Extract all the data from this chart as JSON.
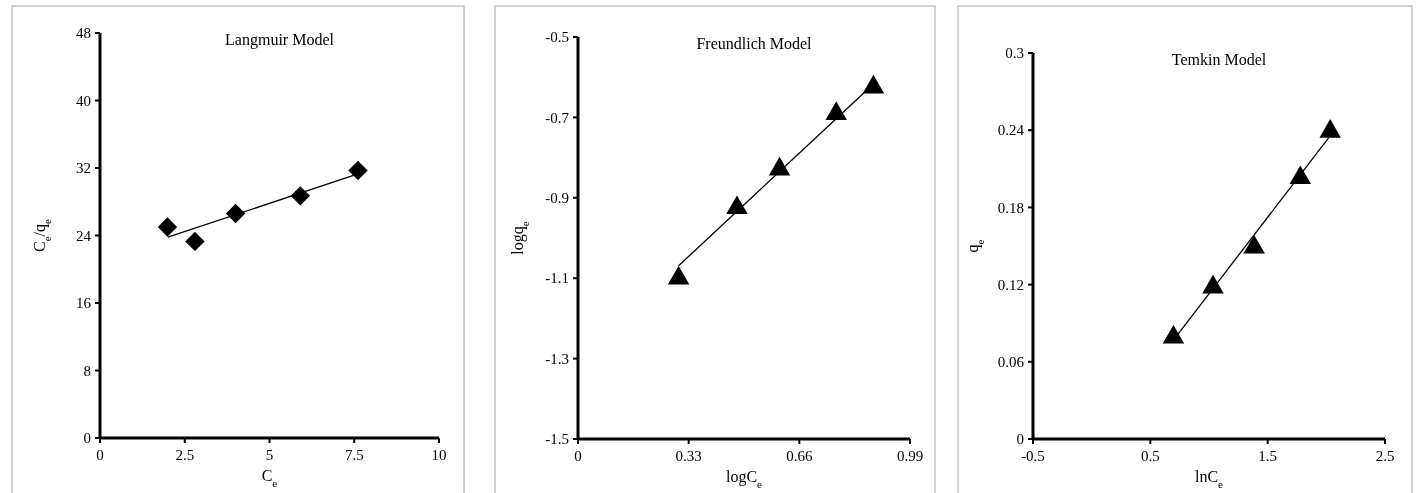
{
  "chart_data": [
    {
      "type": "scatter",
      "title": "Langmuir Model",
      "xlabel": "C$_{e}$",
      "ylabel": "C$_{e}$/q$_{e}$",
      "xlim": [
        0,
        10
      ],
      "xticks": [
        0,
        2.5,
        5,
        7.5,
        10
      ],
      "ylim": [
        0,
        48
      ],
      "yticks": [
        0,
        8,
        16,
        24,
        32,
        40,
        48
      ],
      "grid": false,
      "series": [
        {
          "type": "scatter",
          "marker": "diamond",
          "color": "#000000",
          "x": [
            1.99,
            2.8,
            4.0,
            5.91,
            7.61
          ],
          "values": [
            25.0,
            23.3,
            26.6,
            28.7,
            31.7
          ]
        },
        {
          "type": "line",
          "marker": "none",
          "line_style": "solid",
          "color": "#000000",
          "x": [
            2.0,
            7.61
          ],
          "values": [
            23.8,
            31.3
          ]
        }
      ]
    },
    {
      "type": "scatter",
      "title": "Freundlich Model",
      "xlabel": "logC$_{e}$",
      "ylabel": "logq$_{e}$",
      "xlim": [
        0,
        0.99
      ],
      "xticks": [
        0,
        0.33,
        0.66,
        0.99
      ],
      "ylim": [
        -1.5,
        -0.5
      ],
      "yticks": [
        -1.5,
        -1.3,
        -1.1,
        -0.9,
        -0.7,
        -0.5
      ],
      "grid": false,
      "series": [
        {
          "type": "scatter",
          "marker": "triangle",
          "color": "#000000",
          "x": [
            0.3,
            0.474,
            0.601,
            0.77,
            0.881
          ],
          "values": [
            -1.1,
            -0.925,
            -0.829,
            -0.691,
            -0.625
          ]
        },
        {
          "type": "line",
          "marker": "none",
          "line_style": "solid",
          "color": "#000000",
          "x": [
            0.3,
            0.881
          ],
          "values": [
            -1.069,
            -0.617
          ]
        }
      ]
    },
    {
      "type": "scatter",
      "title": "Temkin Model",
      "xlabel": "lnC$_{e}$",
      "ylabel": "q$_{e}$",
      "xlim": [
        -0.5,
        2.5
      ],
      "xticks": [
        -0.5,
        0.5,
        1.5,
        2.5
      ],
      "ylim": [
        0,
        0.3
      ],
      "yticks": [
        0,
        0.06,
        0.12,
        0.18,
        0.24,
        0.3
      ],
      "grid": false,
      "series": [
        {
          "type": "scatter",
          "marker": "triangle",
          "color": "#000000",
          "x": [
            0.697,
            1.034,
            1.385,
            1.778,
            2.033
          ],
          "values": [
            0.079,
            0.118,
            0.149,
            0.203,
            0.239
          ]
        },
        {
          "type": "line",
          "marker": "none",
          "line_style": "solid",
          "color": "#000000",
          "x": [
            0.723,
            2.019
          ],
          "values": [
            0.08,
            0.234
          ]
        }
      ]
    }
  ]
}
